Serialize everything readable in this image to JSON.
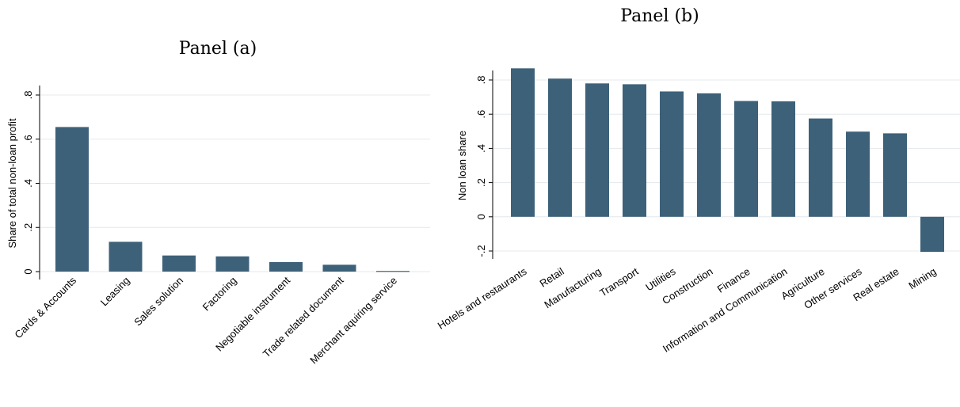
{
  "chart_data": [
    {
      "type": "bar",
      "title": "Panel (a)",
      "xlabel": "",
      "ylabel": "Share of total non-loan profit",
      "ylim": [
        0,
        0.8
      ],
      "yticks": [
        0,
        0.2,
        0.4,
        0.6,
        0.8
      ],
      "ytick_labels": [
        "0",
        ".2",
        ".4",
        ".6",
        ".8"
      ],
      "grid": true,
      "bar_color": "#3d6179",
      "categories": [
        "Cards & Accounts",
        "Leasing",
        "Sales solution",
        "Factoring",
        "Negotiable instrument",
        "Trade related document",
        "Merchant aquiring service"
      ],
      "values": [
        0.655,
        0.135,
        0.073,
        0.069,
        0.043,
        0.031,
        0.003
      ]
    },
    {
      "type": "bar",
      "title": "Panel (b)",
      "xlabel": "",
      "ylabel": "Non loan share",
      "ylim": [
        -0.2,
        0.8
      ],
      "yticks": [
        -0.2,
        0,
        0.2,
        0.4,
        0.6,
        0.8
      ],
      "ytick_labels": [
        "-.2",
        "0",
        ".2",
        ".4",
        ".6",
        ".8"
      ],
      "grid": true,
      "bar_color": "#3d6179",
      "categories": [
        "Hotels and restaurants",
        "Retail",
        "Manufacturing",
        "Transport",
        "Utilities",
        "Construction",
        "Finance",
        "Information and Communication",
        "Agriculture",
        "Other services",
        "Real estate",
        "Mining"
      ],
      "values": [
        0.868,
        0.808,
        0.78,
        0.775,
        0.733,
        0.722,
        0.677,
        0.675,
        0.575,
        0.498,
        0.488,
        -0.205
      ]
    }
  ]
}
